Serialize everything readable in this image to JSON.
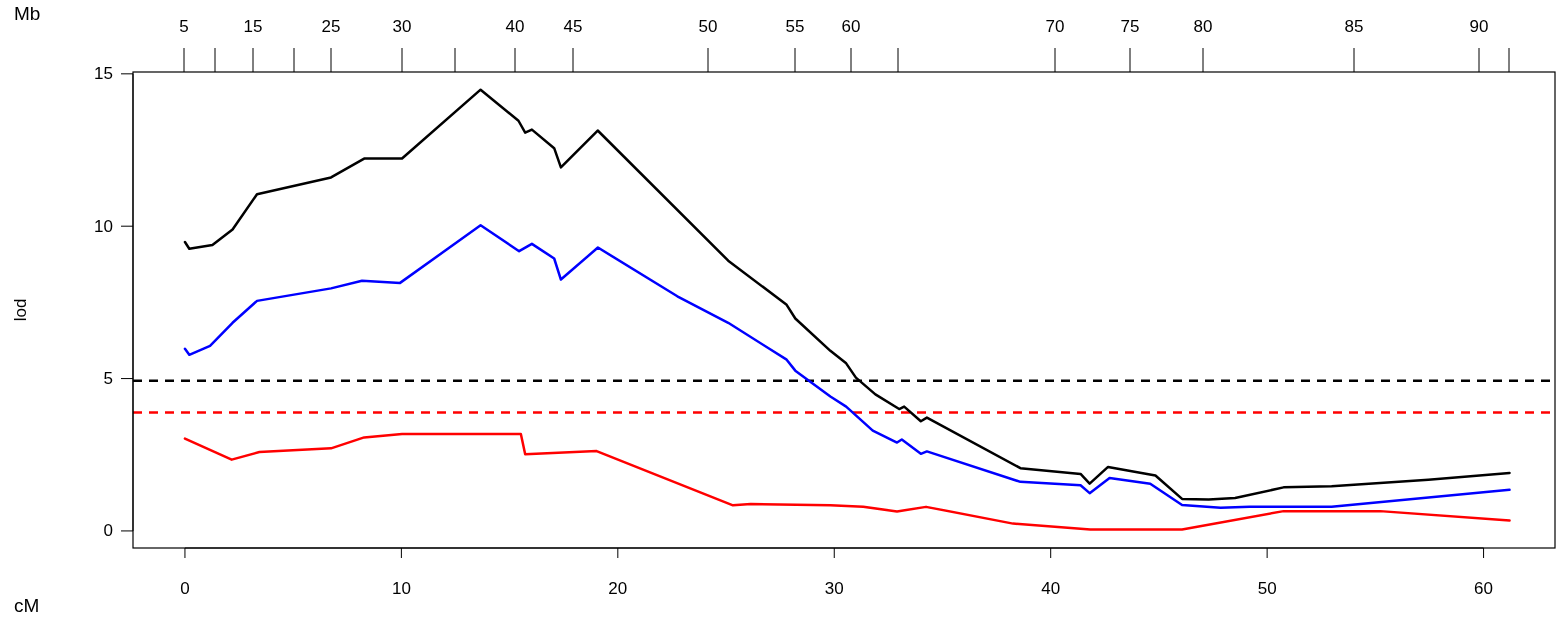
{
  "chart_data": {
    "type": "line",
    "xlabel": "cM",
    "ylabel": "lod",
    "xlim": [
      -2.4,
      63.3
    ],
    "ylim": [
      -0.56,
      15.06
    ],
    "xticks": [
      0,
      10,
      20,
      30,
      40,
      50,
      60
    ],
    "yticks": [
      0,
      5,
      10,
      15
    ],
    "annotations": [
      "Mb",
      "5",
      "15",
      "25",
      "30",
      "40",
      "45",
      "50",
      "55",
      "60",
      "70",
      "75",
      "80",
      "85",
      "90"
    ],
    "grid": false,
    "legend": false,
    "line_style": "solid",
    "marker": "none",
    "series": [
      {
        "color": "#000000",
        "x": [
          0,
          0.2,
          1.27,
          2.2,
          3.33,
          6.75,
          8.28,
          10.03,
          13.66,
          15.41,
          15.72,
          16.03,
          17.06,
          17.37,
          19.07,
          25.1,
          27.8,
          28.2,
          29.82,
          30.55,
          31.0,
          31.9,
          33.0,
          33.23,
          34.0,
          34.28,
          38.6,
          41.38,
          41.8,
          42.65,
          44.84,
          46.07,
          47.3,
          48.52,
          50.76,
          52.98,
          57.45,
          61.2
        ],
        "values": [
          9.48,
          9.26,
          9.38,
          9.89,
          11.05,
          11.6,
          12.22,
          12.22,
          14.48,
          13.46,
          13.07,
          13.17,
          12.56,
          11.93,
          13.14,
          8.87,
          7.42,
          6.97,
          5.91,
          5.5,
          5.03,
          4.48,
          4.0,
          4.08,
          3.6,
          3.72,
          2.06,
          1.87,
          1.55,
          2.1,
          1.82,
          1.05,
          1.03,
          1.08,
          1.43,
          1.47,
          1.68,
          1.9
        ]
      },
      {
        "color": "#0000ff",
        "x": [
          0,
          0.2,
          1.16,
          2.2,
          3.33,
          6.75,
          8.18,
          9.94,
          13.66,
          15.44,
          16.03,
          17.06,
          17.37,
          19.08,
          22.75,
          25.1,
          27.8,
          28.2,
          29.82,
          30.55,
          31.78,
          32.9,
          33.12,
          34.0,
          34.28,
          38.6,
          41.38,
          41.8,
          42.72,
          44.6,
          46.07,
          47.85,
          49.19,
          52.98,
          61.2
        ],
        "values": [
          5.98,
          5.78,
          6.07,
          6.83,
          7.55,
          7.96,
          8.21,
          8.14,
          10.03,
          9.18,
          9.42,
          8.94,
          8.25,
          9.3,
          7.7,
          6.83,
          5.62,
          5.26,
          4.41,
          4.08,
          3.29,
          2.9,
          3.0,
          2.53,
          2.61,
          1.61,
          1.5,
          1.24,
          1.74,
          1.55,
          0.85,
          0.76,
          0.79,
          0.79,
          1.35
        ]
      },
      {
        "color": "#ff0000",
        "x": [
          0,
          2.16,
          3.44,
          6.75,
          8.28,
          10.03,
          15.52,
          15.72,
          19.02,
          25.32,
          26.14,
          29.82,
          31.34,
          32.9,
          34.24,
          38.26,
          41.83,
          46.07,
          50.76,
          55.22,
          61.2
        ],
        "values": [
          3.03,
          2.34,
          2.59,
          2.71,
          3.07,
          3.18,
          3.18,
          2.52,
          2.62,
          0.84,
          0.88,
          0.84,
          0.79,
          0.64,
          0.79,
          0.24,
          0.05,
          0.05,
          0.65,
          0.65,
          0.34
        ]
      }
    ],
    "ref_lines": [
      {
        "axis": "y",
        "value": 4.93,
        "color": "#000000",
        "line_style": "dashed"
      },
      {
        "axis": "y",
        "value": 3.89,
        "color": "#ff0000",
        "line_style": "dashed"
      }
    ]
  }
}
